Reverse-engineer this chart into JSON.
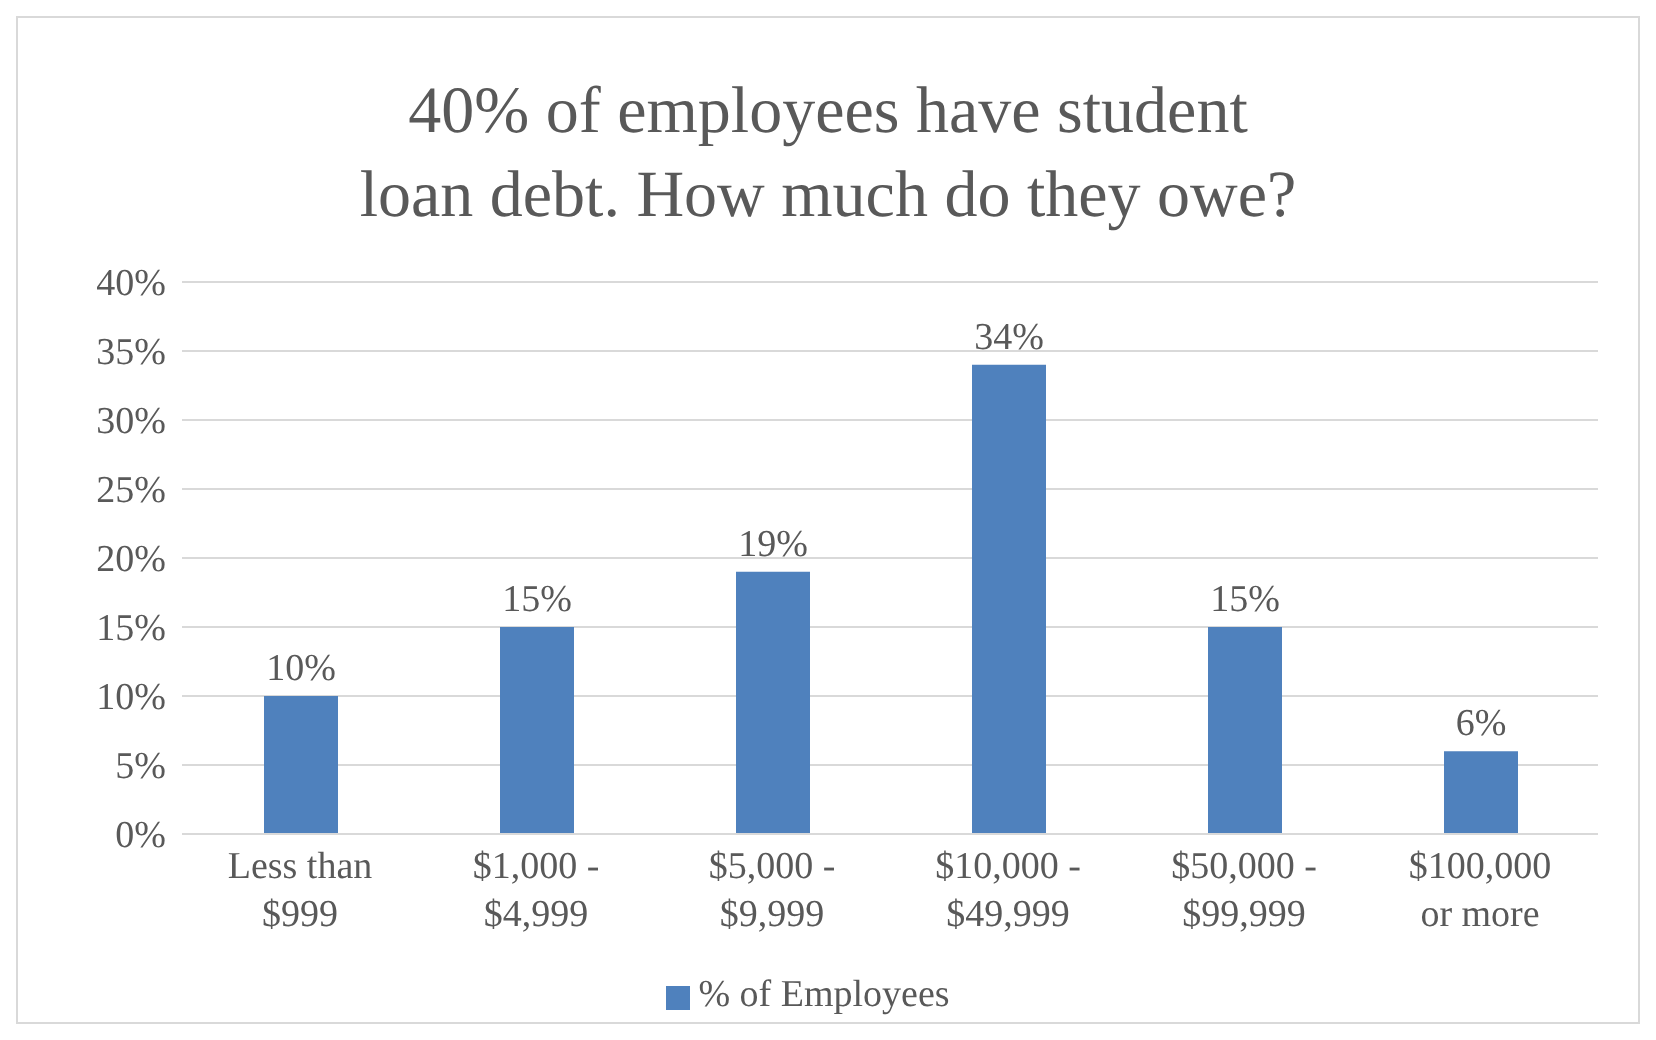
{
  "chart_data": {
    "type": "bar",
    "title": "40% of employees have student loan debt. How much do they owe?",
    "categories": [
      "Less than $999",
      "$1,000 - $4,999",
      "$5,000 - $9,999",
      "$10,000 - $49,999",
      "$50,000 - $99,999",
      "$100,000 or more"
    ],
    "series": [
      {
        "name": "% of Employees",
        "color": "#4f81bd",
        "values": [
          10,
          15,
          19,
          34,
          15,
          6
        ],
        "value_labels": [
          "10%",
          "15%",
          "19%",
          "34%",
          "15%",
          "6%"
        ]
      }
    ],
    "ylim": [
      0,
      40
    ],
    "yticks": [
      {
        "value": 0,
        "label": "0%"
      },
      {
        "value": 5,
        "label": "5%"
      },
      {
        "value": 10,
        "label": "10%"
      },
      {
        "value": 15,
        "label": "15%"
      },
      {
        "value": 20,
        "label": "20%"
      },
      {
        "value": 25,
        "label": "25%"
      },
      {
        "value": 30,
        "label": "30%"
      },
      {
        "value": 35,
        "label": "35%"
      },
      {
        "value": 40,
        "label": "40%"
      }
    ],
    "grid": "y",
    "legend": "bottom"
  }
}
